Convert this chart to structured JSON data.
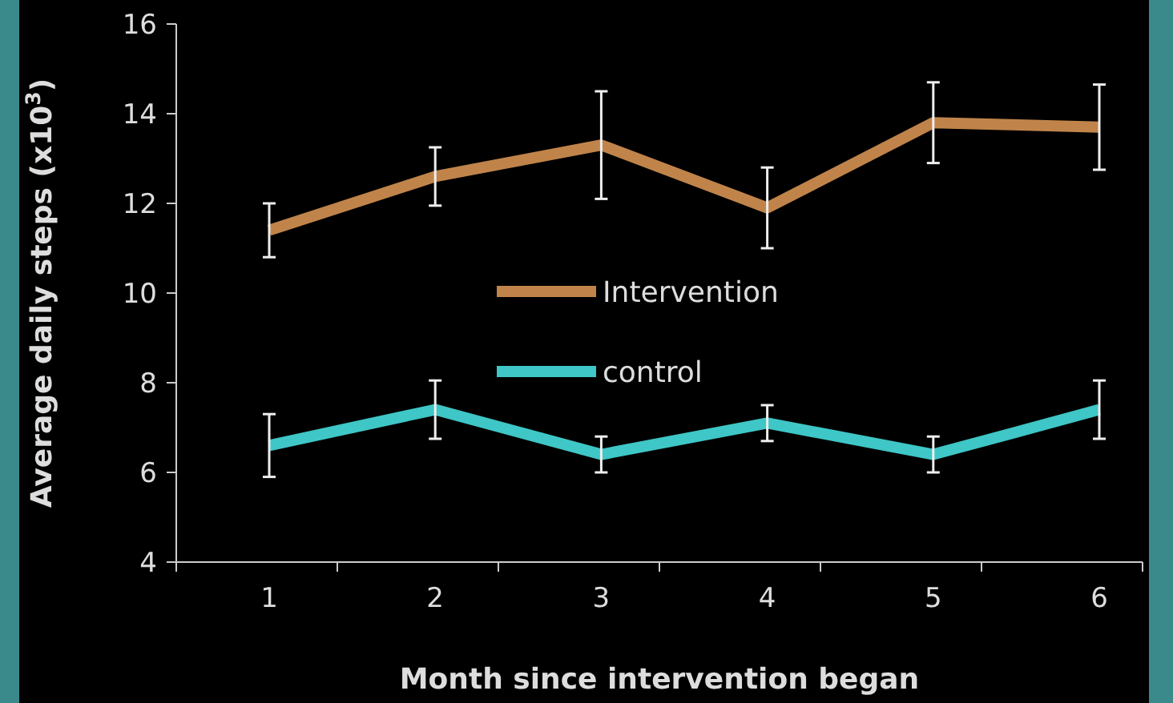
{
  "chart_data": {
    "type": "line",
    "xlabel": "Month since intervention began",
    "ylabel": "Average daily steps (x10$^{3}$)",
    "categories": [
      "1",
      "2",
      "3",
      "4",
      "5",
      "6"
    ],
    "series": [
      {
        "name": "Intervention",
        "color": "#c0844a",
        "values": [
          11.4,
          12.6,
          13.3,
          11.9,
          13.8,
          13.7
        ],
        "errors": [
          0.6,
          0.65,
          1.2,
          0.9,
          0.9,
          0.95
        ]
      },
      {
        "name": "control",
        "color": "#3fc6c6",
        "values": [
          6.6,
          7.4,
          6.4,
          7.1,
          6.4,
          7.4
        ],
        "errors": [
          0.7,
          0.65,
          0.4,
          0.4,
          0.4,
          0.65
        ]
      }
    ],
    "ylim": [
      4,
      16
    ],
    "yticks": [
      4,
      6,
      8,
      10,
      12,
      14,
      16
    ],
    "grid": false,
    "legend": "center",
    "marker": "none",
    "line_style": "solid"
  }
}
